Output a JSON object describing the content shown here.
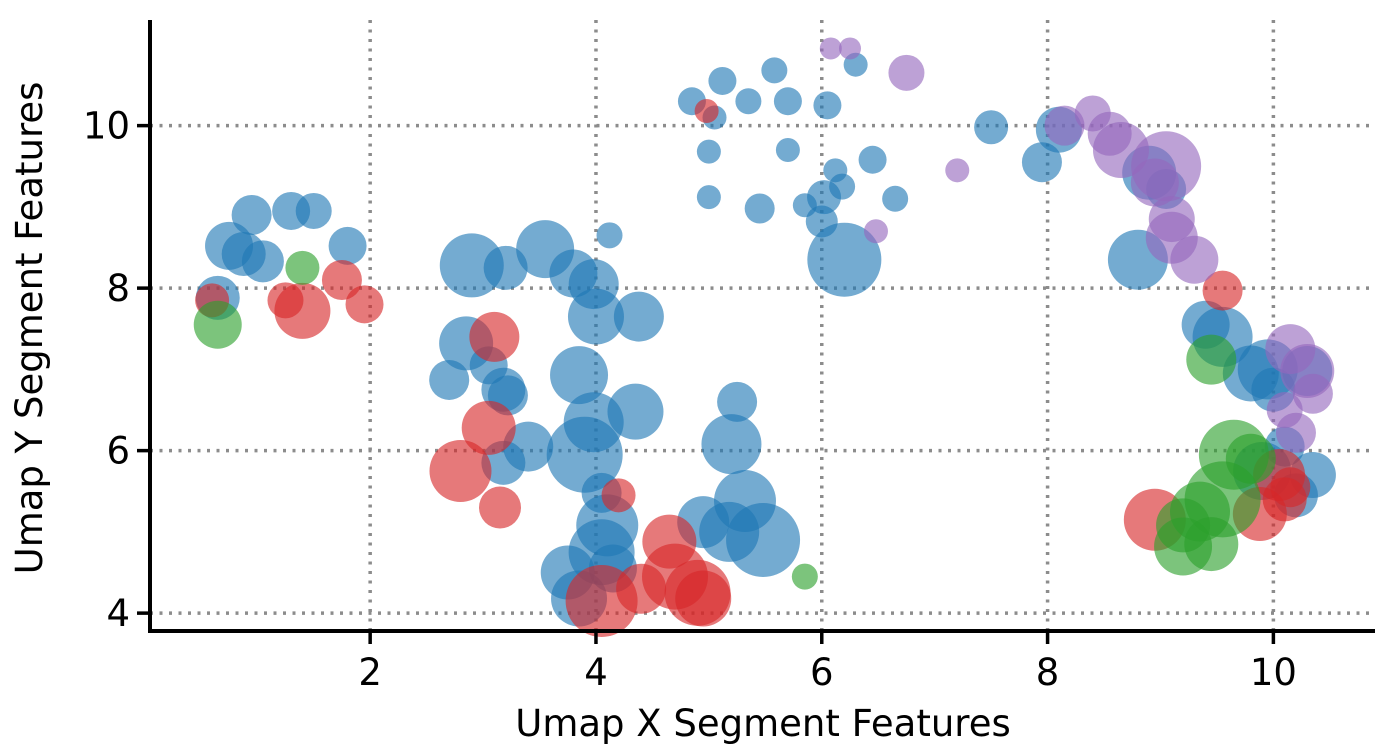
{
  "chart_data": {
    "type": "scatter",
    "title": "",
    "xlabel": "Umap X Segment Features",
    "ylabel": "Umap Y Segment Features",
    "xlim": [
      0.05,
      10.9
    ],
    "ylim": [
      3.78,
      11.3
    ],
    "xticks": [
      2,
      4,
      6,
      8,
      10
    ],
    "yticks": [
      4,
      6,
      8,
      10
    ],
    "grid": true,
    "grid_style": "dotted",
    "legend": "none",
    "marker_alpha": 0.62,
    "colors": {
      "blue": "#1f77b4",
      "red": "#d62728",
      "green": "#2ca02c",
      "purple": "#9467bd"
    },
    "series": [
      {
        "color_key": "blue",
        "points": [
          [
            0.95,
            8.9,
            20
          ],
          [
            1.3,
            8.95,
            19
          ],
          [
            1.5,
            8.95,
            18
          ],
          [
            1.8,
            8.52,
            19
          ],
          [
            0.75,
            8.52,
            24
          ],
          [
            0.88,
            8.42,
            22
          ],
          [
            1.05,
            8.33,
            21
          ],
          [
            0.65,
            7.88,
            22
          ],
          [
            2.9,
            8.28,
            32
          ],
          [
            3.2,
            8.25,
            22
          ],
          [
            3.55,
            8.48,
            29
          ],
          [
            3.8,
            8.18,
            24
          ],
          [
            3.98,
            8.05,
            25
          ],
          [
            4.12,
            8.65,
            13
          ],
          [
            4.0,
            7.65,
            28
          ],
          [
            4.38,
            7.65,
            25
          ],
          [
            2.85,
            7.32,
            27
          ],
          [
            3.05,
            7.05,
            19
          ],
          [
            3.18,
            6.75,
            22
          ],
          [
            3.22,
            6.68,
            20
          ],
          [
            2.7,
            6.87,
            20
          ],
          [
            3.4,
            6.05,
            25
          ],
          [
            3.18,
            5.85,
            22
          ],
          [
            3.85,
            6.93,
            29
          ],
          [
            3.98,
            6.35,
            30
          ],
          [
            4.35,
            6.48,
            28
          ],
          [
            3.9,
            5.95,
            38
          ],
          [
            4.05,
            5.48,
            20
          ],
          [
            4.1,
            5.08,
            31
          ],
          [
            4.05,
            4.75,
            33
          ],
          [
            3.75,
            4.5,
            27
          ],
          [
            3.85,
            4.18,
            28
          ],
          [
            4.15,
            4.55,
            24
          ],
          [
            4.95,
            5.12,
            26
          ],
          [
            5.18,
            5.0,
            30
          ],
          [
            5.32,
            5.38,
            31
          ],
          [
            5.48,
            4.9,
            37
          ],
          [
            5.2,
            6.08,
            30
          ],
          [
            5.25,
            6.6,
            20
          ],
          [
            4.85,
            10.3,
            14
          ],
          [
            5.12,
            10.55,
            14
          ],
          [
            5.35,
            10.3,
            13
          ],
          [
            5.58,
            10.68,
            13
          ],
          [
            5.7,
            10.3,
            14
          ],
          [
            5.05,
            10.1,
            12
          ],
          [
            5.0,
            9.68,
            12
          ],
          [
            5.7,
            9.7,
            12
          ],
          [
            6.05,
            10.25,
            14
          ],
          [
            6.12,
            9.45,
            12
          ],
          [
            6.3,
            10.75,
            12
          ],
          [
            6.45,
            9.58,
            14
          ],
          [
            6.18,
            9.25,
            13
          ],
          [
            6.02,
            9.12,
            17
          ],
          [
            6.65,
            9.1,
            13
          ],
          [
            5.0,
            9.12,
            12
          ],
          [
            5.45,
            8.98,
            15
          ],
          [
            5.85,
            9.02,
            12
          ],
          [
            6.0,
            8.82,
            16
          ],
          [
            6.2,
            8.35,
            37
          ],
          [
            7.5,
            9.98,
            17
          ],
          [
            8.1,
            9.95,
            23
          ],
          [
            7.95,
            9.55,
            20
          ],
          [
            8.9,
            9.42,
            27
          ],
          [
            9.05,
            9.22,
            20
          ],
          [
            8.8,
            8.35,
            30
          ],
          [
            9.4,
            7.55,
            24
          ],
          [
            9.55,
            7.4,
            30
          ],
          [
            9.8,
            6.95,
            28
          ],
          [
            9.95,
            7.0,
            30
          ],
          [
            10.0,
            6.75,
            22
          ],
          [
            10.3,
            6.98,
            25
          ],
          [
            9.9,
            5.75,
            29
          ],
          [
            10.35,
            5.7,
            23
          ],
          [
            10.2,
            5.45,
            22
          ],
          [
            10.1,
            6.05,
            20
          ]
        ]
      },
      {
        "color_key": "red",
        "points": [
          [
            0.6,
            7.85,
            17
          ],
          [
            1.25,
            7.85,
            18
          ],
          [
            1.4,
            7.72,
            28
          ],
          [
            1.75,
            8.1,
            20
          ],
          [
            1.95,
            7.8,
            19
          ],
          [
            3.1,
            7.4,
            25
          ],
          [
            3.05,
            6.28,
            27
          ],
          [
            2.8,
            5.75,
            31
          ],
          [
            3.15,
            5.3,
            21
          ],
          [
            4.2,
            5.45,
            17
          ],
          [
            4.05,
            4.15,
            36
          ],
          [
            4.4,
            4.3,
            25
          ],
          [
            4.65,
            4.88,
            27
          ],
          [
            4.7,
            4.45,
            33
          ],
          [
            4.9,
            4.25,
            33
          ],
          [
            4.95,
            4.18,
            28
          ],
          [
            4.98,
            10.18,
            12
          ],
          [
            9.55,
            7.97,
            20
          ],
          [
            8.95,
            5.15,
            31
          ],
          [
            9.88,
            5.22,
            27
          ],
          [
            10.05,
            5.7,
            26
          ],
          [
            10.15,
            5.55,
            20
          ],
          [
            10.1,
            5.4,
            22
          ]
        ]
      },
      {
        "color_key": "green",
        "points": [
          [
            1.4,
            8.25,
            17
          ],
          [
            0.65,
            7.55,
            24
          ],
          [
            5.85,
            4.45,
            13
          ],
          [
            9.45,
            7.12,
            25
          ],
          [
            9.65,
            5.95,
            35
          ],
          [
            9.55,
            5.4,
            38
          ],
          [
            9.35,
            5.25,
            30
          ],
          [
            9.2,
            5.08,
            27
          ],
          [
            9.2,
            4.82,
            29
          ],
          [
            9.45,
            4.85,
            27
          ],
          [
            9.8,
            5.9,
            25
          ]
        ]
      },
      {
        "color_key": "purple",
        "points": [
          [
            6.08,
            10.95,
            11
          ],
          [
            6.25,
            10.95,
            11
          ],
          [
            6.75,
            10.65,
            18
          ],
          [
            6.48,
            8.7,
            12
          ],
          [
            7.2,
            9.45,
            12
          ],
          [
            8.15,
            10.0,
            20
          ],
          [
            8.4,
            10.15,
            18
          ],
          [
            8.55,
            9.9,
            22
          ],
          [
            8.65,
            9.7,
            28
          ],
          [
            9.05,
            9.5,
            35
          ],
          [
            8.95,
            9.3,
            24
          ],
          [
            9.1,
            8.85,
            23
          ],
          [
            9.1,
            8.62,
            26
          ],
          [
            9.3,
            8.35,
            24
          ],
          [
            10.15,
            7.25,
            25
          ],
          [
            10.3,
            6.98,
            27
          ],
          [
            10.35,
            6.7,
            20
          ],
          [
            10.2,
            6.22,
            20
          ],
          [
            10.1,
            6.5,
            18
          ]
        ]
      }
    ]
  }
}
